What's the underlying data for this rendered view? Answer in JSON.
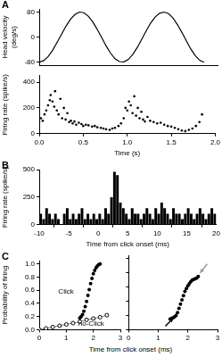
{
  "chart_data": [
    {
      "type": "line",
      "title": "A",
      "ylabel": "Head velocity (deg/s)",
      "x": [
        0,
        0.05,
        0.1,
        0.15,
        0.2,
        0.25,
        0.3,
        0.35,
        0.4,
        0.45,
        0.5,
        0.55,
        0.6,
        0.65,
        0.7,
        0.75,
        0.8,
        0.85,
        0.9,
        0.95,
        1.0,
        1.05,
        1.1,
        1.15,
        1.2,
        1.25,
        1.3,
        1.35,
        1.4,
        1.45,
        1.5,
        1.55,
        1.6,
        1.65,
        1.7,
        1.75,
        1.8,
        1.85
      ],
      "values": [
        -80,
        -75,
        -62,
        -42,
        -17,
        9,
        35,
        57,
        72,
        80,
        78,
        67,
        49,
        25,
        -1,
        -28,
        -51,
        -69,
        -78,
        -79,
        -71,
        -55,
        -33,
        -7,
        20,
        45,
        64,
        76,
        80,
        75,
        61,
        40,
        15,
        -12,
        -38,
        -59,
        -74,
        -80
      ],
      "color": "#000000",
      "xlim": [
        0,
        2
      ],
      "ylim": [
        -90,
        90
      ],
      "yticks": [
        -80,
        0,
        80
      ],
      "tick_labels": "y",
      "grid": false
    },
    {
      "type": "scatter",
      "xlabel": "Time (s)",
      "ylabel": "Firing rate (spike/s)",
      "x": [
        0.0,
        0.02,
        0.04,
        0.06,
        0.08,
        0.1,
        0.12,
        0.13,
        0.15,
        0.17,
        0.18,
        0.2,
        0.22,
        0.24,
        0.26,
        0.28,
        0.3,
        0.32,
        0.34,
        0.36,
        0.38,
        0.4,
        0.42,
        0.45,
        0.48,
        0.5,
        0.53,
        0.56,
        0.6,
        0.63,
        0.66,
        0.7,
        0.73,
        0.76,
        0.8,
        0.83,
        0.86,
        0.9,
        0.93,
        0.96,
        0.98,
        1.0,
        1.02,
        1.04,
        1.06,
        1.08,
        1.1,
        1.12,
        1.14,
        1.16,
        1.18,
        1.2,
        1.23,
        1.26,
        1.3,
        1.34,
        1.38,
        1.42,
        1.46,
        1.5,
        1.54,
        1.58,
        1.62,
        1.66,
        1.7,
        1.74,
        1.78,
        1.82,
        1.85
      ],
      "values": [
        90,
        120,
        100,
        150,
        180,
        220,
        260,
        300,
        250,
        210,
        330,
        180,
        150,
        270,
        120,
        200,
        110,
        160,
        90,
        100,
        80,
        95,
        70,
        85,
        75,
        60,
        70,
        65,
        55,
        60,
        50,
        45,
        40,
        35,
        30,
        40,
        45,
        60,
        80,
        120,
        200,
        180,
        250,
        220,
        160,
        290,
        140,
        200,
        120,
        170,
        110,
        95,
        130,
        100,
        90,
        80,
        85,
        70,
        60,
        55,
        45,
        35,
        25,
        20,
        30,
        40,
        60,
        90,
        150
      ],
      "color": "#000000",
      "marker": "circle",
      "xlim": [
        0,
        2
      ],
      "xticks": [
        {
          "value": 0,
          "label": "0.0"
        },
        {
          "value": 0.5,
          "label": "0.5"
        },
        {
          "value": 1,
          "label": "1.0"
        },
        {
          "value": 1.5,
          "label": "1.5"
        },
        {
          "value": 2,
          "label": "2.0"
        }
      ],
      "ylim": [
        0,
        450
      ],
      "yticks": [
        0,
        200,
        400
      ],
      "grid": false
    },
    {
      "type": "histogram",
      "title": "B",
      "xlabel": "Time from click onset (ms)",
      "ylabel": "Firing rate (spike/s)",
      "bins": [
        -10,
        -9.5,
        -9,
        -8.5,
        -8,
        -7.5,
        -7,
        -6.5,
        -6,
        -5.5,
        -5,
        -4.5,
        -4,
        -3.5,
        -3,
        -2.5,
        -2,
        -1.5,
        -1,
        -0.5,
        0,
        0.5,
        1,
        1.5,
        2,
        2.5,
        3,
        3.5,
        4,
        4.5,
        5,
        5.5,
        6,
        6.5,
        7,
        7.5,
        8,
        8.5,
        9,
        9.5,
        10,
        10.5,
        11,
        11.5,
        12,
        12.5,
        13,
        13.5,
        14,
        14.5,
        15,
        15.5,
        16,
        16.5,
        17,
        17.5,
        18,
        18.5,
        19,
        19.5,
        20
      ],
      "values": [
        100,
        50,
        150,
        100,
        50,
        100,
        50,
        0,
        100,
        150,
        50,
        100,
        50,
        100,
        150,
        50,
        100,
        50,
        100,
        50,
        100,
        50,
        150,
        100,
        250,
        480,
        450,
        200,
        150,
        100,
        50,
        150,
        100,
        100,
        50,
        100,
        150,
        100,
        50,
        150,
        100,
        200,
        150,
        100,
        50,
        150,
        100,
        100,
        50,
        100,
        150,
        100,
        50,
        100,
        150,
        100,
        50,
        100,
        150,
        100
      ],
      "color": "#000000",
      "xlim": [
        -10,
        20
      ],
      "xticks": [
        -10,
        -5,
        0,
        5,
        10,
        15,
        20
      ],
      "ylim": [
        0,
        500
      ],
      "yticks": [
        0,
        250,
        500
      ],
      "grid": false
    },
    {
      "type": "scatter",
      "title": "C",
      "xlabel": "Time from click onset (ms)",
      "ylabel": "Probability of firing",
      "series": [
        {
          "name": "Click",
          "color": "#000000",
          "marker": "circle",
          "line_style": "none",
          "x": [
            1.5,
            1.55,
            1.6,
            1.65,
            1.7,
            1.75,
            1.8,
            1.85,
            1.9,
            1.95,
            2.0,
            2.05,
            2.1,
            2.15,
            2.2,
            2.25
          ],
          "values": [
            0.18,
            0.2,
            0.23,
            0.28,
            0.35,
            0.43,
            0.52,
            0.61,
            0.7,
            0.78,
            0.85,
            0.9,
            0.94,
            0.97,
            0.99,
            1.0
          ]
        },
        {
          "name": "no-Click",
          "color": "#808080",
          "marker": "open_circle",
          "line_style": "solid",
          "x": [
            0,
            0.25,
            0.5,
            0.75,
            1.0,
            1.25,
            1.5,
            1.75,
            2.0,
            2.25,
            2.5
          ],
          "values": [
            0.0,
            0.02,
            0.04,
            0.06,
            0.08,
            0.1,
            0.12,
            0.15,
            0.17,
            0.19,
            0.22
          ]
        }
      ],
      "xlim": [
        0,
        3
      ],
      "xticks": [
        0,
        1,
        2,
        3
      ],
      "ylim": [
        0,
        1.05
      ],
      "yticks": [
        {
          "value": 0,
          "label": "0.0"
        },
        {
          "value": 0.2,
          "label": "0.2"
        },
        {
          "value": 0.4,
          "label": "0.4"
        },
        {
          "value": 0.6,
          "label": "0.6"
        },
        {
          "value": 0.8,
          "label": "0.8"
        },
        {
          "value": 1,
          "label": "1.0"
        }
      ],
      "grid": false
    },
    {
      "type": "scatter",
      "x": [
        1.4,
        1.45,
        1.5,
        1.55,
        1.6,
        1.65,
        1.7,
        1.75,
        1.8,
        1.85,
        1.9,
        1.95,
        2.0,
        2.05,
        2.1,
        2.15,
        2.2,
        2.25,
        2.3,
        2.35
      ],
      "values": [
        0.15,
        0.16,
        0.17,
        0.18,
        0.2,
        0.24,
        0.3,
        0.36,
        0.42,
        0.48,
        0.54,
        0.58,
        0.62,
        0.65,
        0.68,
        0.7,
        0.71,
        0.72,
        0.73,
        0.75
      ],
      "color": "#000000",
      "marker": "circle",
      "xlim": [
        0,
        3
      ],
      "xticks": [
        0,
        1,
        2,
        3
      ],
      "ylim": [
        0,
        1.05
      ],
      "yticks": [
        0,
        0.2,
        0.4,
        0.6,
        0.8,
        1
      ],
      "tick_labels": "x",
      "grid": false
    }
  ]
}
